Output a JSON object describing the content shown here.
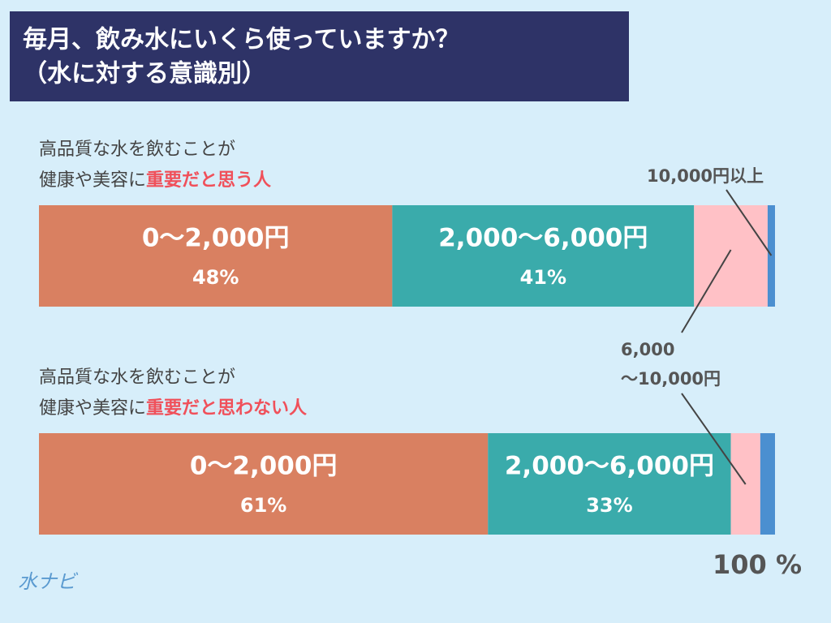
{
  "chart_data": {
    "type": "stacked_bar_horizontal",
    "title": [
      "毎月、飲み水にいくら使っていますか？",
      "（水に対する意識別）"
    ],
    "categories": [
      {
        "lines": [
          "高品質な水を飲むことが",
          "健康や美容に"
        ],
        "emphasis": "重要だと思う人"
      },
      {
        "lines": [
          "高品質な水を飲むことが",
          "健康や美容に"
        ],
        "emphasis": "重要だと思わない人"
      }
    ],
    "series": [
      {
        "name": "0〜2,000円",
        "color": "#d98061",
        "values": [
          48,
          61
        ],
        "value_labels": [
          "48%",
          "61%"
        ]
      },
      {
        "name": "2,000〜6,000円",
        "color": "#3aabab",
        "values": [
          41,
          33
        ],
        "value_labels": [
          "41%",
          "33%"
        ]
      },
      {
        "name": [
          "6,000",
          "〜10,000円"
        ],
        "color": "#ffc1c6",
        "values": [
          10,
          4
        ]
      },
      {
        "name": "10,000円以上",
        "color": "#4b8fd0",
        "values": [
          1,
          2
        ]
      }
    ],
    "xlim": [
      0,
      100
    ],
    "axis_note": "100 %",
    "logo": "水ナビ"
  }
}
